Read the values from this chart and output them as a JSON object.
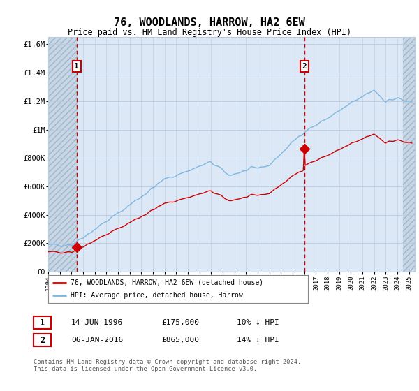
{
  "title": "76, WOODLANDS, HARROW, HA2 6EW",
  "subtitle": "Price paid vs. HM Land Registry's House Price Index (HPI)",
  "ylabel_vals": [
    "£0",
    "£200K",
    "£400K",
    "£600K",
    "£800K",
    "£1M",
    "£1.2M",
    "£1.4M",
    "£1.6M"
  ],
  "yticks": [
    0,
    200000,
    400000,
    600000,
    800000,
    1000000,
    1200000,
    1400000,
    1600000
  ],
  "ylim": [
    0,
    1650000
  ],
  "sale1_year": 1996.45,
  "sale1_price": 175000,
  "sale2_year": 2016.03,
  "sale2_price": 865000,
  "legend_entry1": "76, WOODLANDS, HARROW, HA2 6EW (detached house)",
  "legend_entry2": "HPI: Average price, detached house, Harrow",
  "table_row1": [
    "1",
    "14-JUN-1996",
    "£175,000",
    "10% ↓ HPI"
  ],
  "table_row2": [
    "2",
    "06-JAN-2016",
    "£865,000",
    "14% ↓ HPI"
  ],
  "footer": "Contains HM Land Registry data © Crown copyright and database right 2024.\nThis data is licensed under the Open Government Licence v3.0.",
  "hpi_color": "#7eb6e0",
  "price_color": "#cc0000",
  "dashed_line_color": "#cc0000",
  "bg_color": "#dce8f5",
  "grid_color": "#b8cce0",
  "hatch_color": "#c0d0e0"
}
